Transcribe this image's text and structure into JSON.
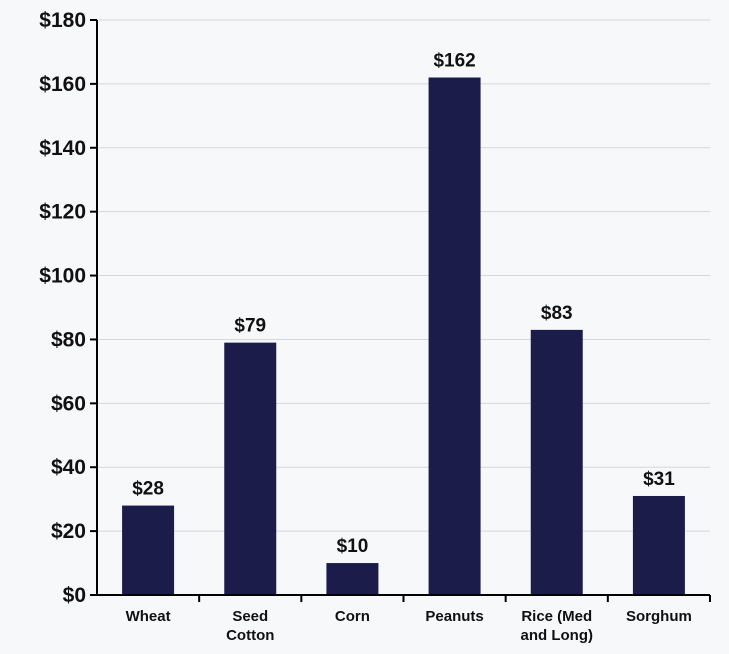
{
  "chart_data": {
    "type": "bar",
    "categories": [
      [
        "Wheat"
      ],
      [
        "Seed",
        "Cotton"
      ],
      [
        "Corn"
      ],
      [
        "Peanuts"
      ],
      [
        "Rice (Med",
        "and Long)"
      ],
      [
        "Sorghum"
      ]
    ],
    "values": [
      28,
      79,
      10,
      162,
      83,
      31
    ],
    "data_labels": [
      "$28",
      "$79",
      "$10",
      "$162",
      "$83",
      "$31"
    ],
    "y_tick_labels": [
      "$0",
      "$20",
      "$40",
      "$60",
      "$80",
      "$100",
      "$120",
      "$140",
      "$160",
      "$180"
    ],
    "ylim": [
      0,
      180
    ],
    "y_tick_step": 20,
    "title": "",
    "xlabel": "",
    "ylabel": "",
    "grid": true,
    "legend": "none",
    "colors": {
      "bar": "#1c1c4b",
      "grid": "#d4d6dc",
      "axis": "#000000",
      "background": "#f7f8fa"
    }
  }
}
